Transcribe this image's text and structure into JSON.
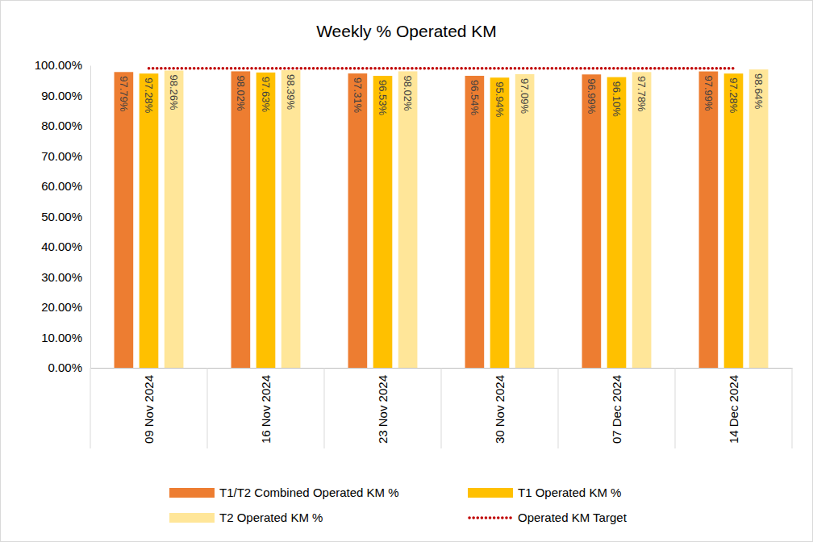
{
  "chart_data": {
    "type": "bar",
    "title": "Weekly % Operated KM",
    "categories": [
      "09 Nov 2024",
      "16 Nov 2024",
      "23 Nov 2024",
      "30 Nov 2024",
      "07 Dec 2024",
      "14 Dec 2024"
    ],
    "series": [
      {
        "name": "T1/T2 Combined Operated KM %",
        "color": "#ED7D31",
        "values": [
          97.79,
          98.02,
          97.31,
          96.54,
          96.99,
          97.99
        ],
        "value_labels": [
          "97.79%",
          "98.02%",
          "97.31%",
          "96.54%",
          "96.99%",
          "97.99%"
        ]
      },
      {
        "name": "T1 Operated KM %",
        "color": "#FFC000",
        "values": [
          97.28,
          97.63,
          96.53,
          95.94,
          96.1,
          97.28
        ],
        "value_labels": [
          "97.28%",
          "97.63%",
          "96.53%",
          "95.94%",
          "96.10%",
          "97.28%"
        ]
      },
      {
        "name": "T2 Operated KM %",
        "color": "#FFE699",
        "values": [
          98.26,
          98.39,
          98.02,
          97.09,
          97.78,
          98.64
        ],
        "value_labels": [
          "98.26%",
          "98.39%",
          "98.02%",
          "97.09%",
          "97.78%",
          "98.64%"
        ]
      },
      {
        "name": "Operated KM Target",
        "color": "#C00000",
        "type": "line",
        "line_style": "dotted",
        "values": [
          99,
          99,
          99,
          99,
          99,
          99
        ]
      }
    ],
    "ylim": [
      0,
      100
    ],
    "yticks": [
      {
        "value": 0,
        "label": "0.00%"
      },
      {
        "value": 10,
        "label": "10.00%"
      },
      {
        "value": 20,
        "label": "20.00%"
      },
      {
        "value": 30,
        "label": "30.00%"
      },
      {
        "value": 40,
        "label": "40.00%"
      },
      {
        "value": 50,
        "label": "50.00%"
      },
      {
        "value": 60,
        "label": "60.00%"
      },
      {
        "value": 70,
        "label": "70.00%"
      },
      {
        "value": 80,
        "label": "80.00%"
      },
      {
        "value": 90,
        "label": "90.00%"
      },
      {
        "value": 100,
        "label": "100.00%"
      }
    ],
    "grid": false,
    "legend": "bottom",
    "data_labels": true
  }
}
